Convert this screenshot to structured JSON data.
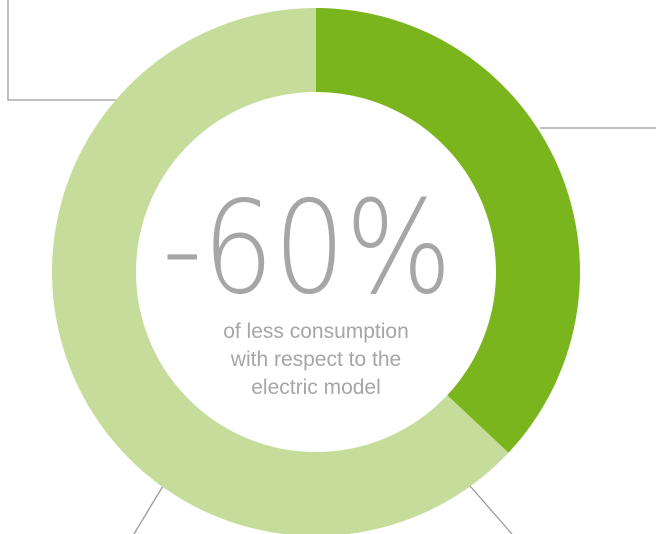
{
  "chart_data": {
    "type": "pie",
    "variant": "donut",
    "slices": [
      {
        "value": 37,
        "color": "#7ab51d"
      },
      {
        "value": 63,
        "color": "#c5dc9b"
      }
    ],
    "center_value": "-60%",
    "center_caption": [
      "of less consumption",
      "with respect to the",
      "electric model"
    ],
    "start_angle_deg": 0,
    "direction": "clockwise"
  },
  "colors": {
    "accent": "#7ab51d",
    "remainder": "#c5dc9b",
    "center_text": "#a6a6a6",
    "leader_lines": "#9b9b9b",
    "background": "#ffffff"
  }
}
